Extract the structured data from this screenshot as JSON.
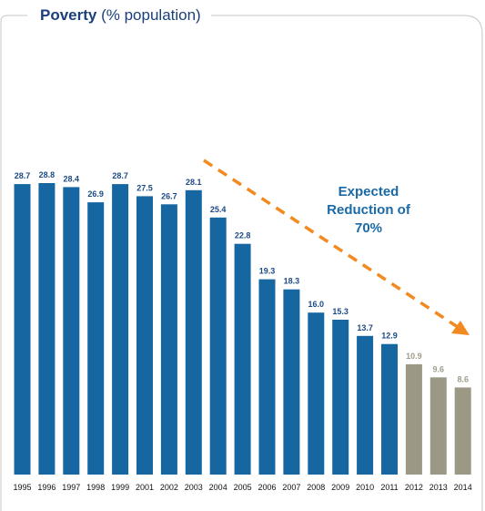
{
  "title": {
    "bold": "Poverty",
    "rest": " (% population)"
  },
  "annotation": {
    "lines": [
      "Expected",
      "Reduction of",
      "70%"
    ]
  },
  "colors": {
    "actual": "#1666a2",
    "projected": "#9b9886",
    "actual_label": "#1b4a86",
    "projected_label": "#a09c8a",
    "arrow": "#f28a22",
    "annotation": "#1a6aa8",
    "frame": "#d0d0d0"
  },
  "chart_data": {
    "type": "bar",
    "title": "Poverty (% population)",
    "categories": [
      "1995",
      "1996",
      "1997",
      "1998",
      "1999",
      "2001",
      "2002",
      "2003",
      "2004",
      "2005",
      "2006",
      "2007",
      "2008",
      "2009",
      "2010",
      "2011",
      "2012",
      "2013",
      "2014"
    ],
    "series": [
      {
        "values": [
          28.7,
          28.8,
          28.4,
          26.9,
          28.7,
          27.5,
          26.7,
          28.1,
          25.4,
          22.8,
          19.3,
          18.3,
          16.0,
          15.3,
          13.7,
          12.9,
          10.9,
          9.6,
          8.6
        ]
      }
    ],
    "labels": [
      "28.7",
      "28.8",
      "28.4",
      "26.9",
      "28.7",
      "27.5",
      "26.7",
      "28.1",
      "25.4",
      "22.8",
      "19.3",
      "18.3",
      "16.0",
      "15.3",
      "13.7",
      "12.9",
      "10.9",
      "9.6",
      "8.6"
    ],
    "projected": [
      false,
      false,
      false,
      false,
      false,
      false,
      false,
      false,
      false,
      false,
      false,
      false,
      false,
      false,
      false,
      false,
      true,
      true,
      true
    ],
    "ylim": [
      0,
      28.8
    ],
    "grid": false,
    "legend": "none",
    "annotation": "Expected Reduction of 70%"
  }
}
